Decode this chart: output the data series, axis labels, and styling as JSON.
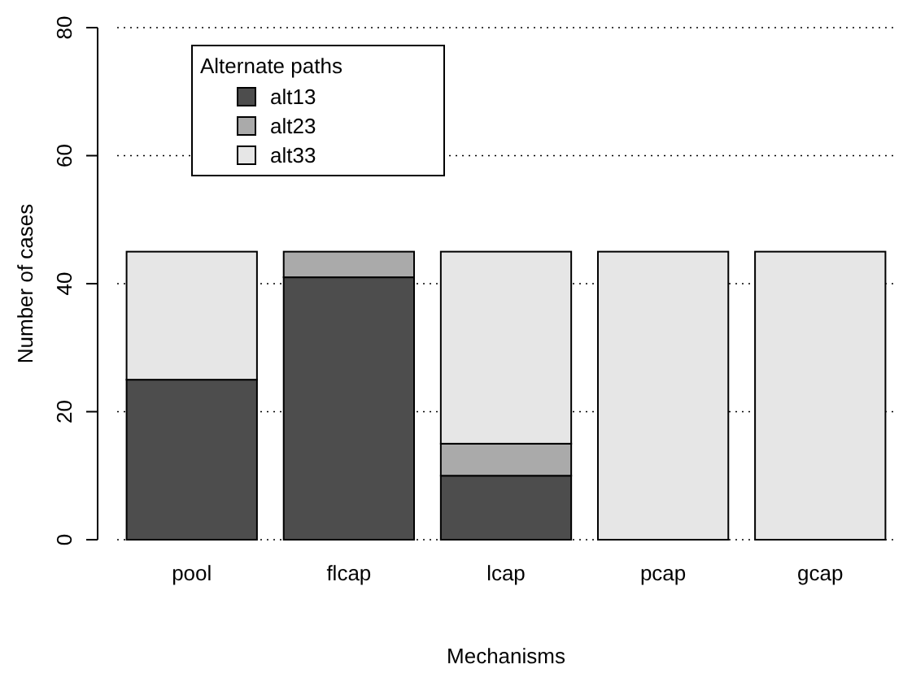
{
  "chart_data": {
    "type": "bar",
    "stacked": true,
    "xlabel": "Mechanisms",
    "ylabel": "Number of cases",
    "legend_title": "Alternate paths",
    "legend": "top left",
    "grid": "y",
    "categories": [
      "pool",
      "flcap",
      "lcap",
      "pcap",
      "gcap"
    ],
    "series": [
      {
        "name": "alt13",
        "color": "#4d4d4d",
        "values": [
          25,
          41,
          10,
          0,
          0
        ]
      },
      {
        "name": "alt23",
        "color": "#aaaaaa",
        "values": [
          0,
          4,
          5,
          0,
          0
        ]
      },
      {
        "name": "alt33",
        "color": "#e6e6e6",
        "values": [
          20,
          0,
          30,
          45,
          45
        ]
      }
    ],
    "ylim": [
      0,
      80
    ],
    "yticks": [
      0,
      20,
      40,
      60,
      80
    ]
  }
}
